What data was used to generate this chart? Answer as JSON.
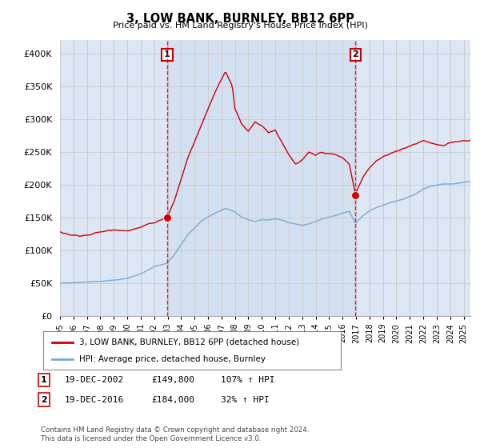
{
  "title": "3, LOW BANK, BURNLEY, BB12 6PP",
  "subtitle": "Price paid vs. HM Land Registry's House Price Index (HPI)",
  "ylim": [
    0,
    420000
  ],
  "yticks": [
    0,
    50000,
    100000,
    150000,
    200000,
    250000,
    300000,
    350000,
    400000
  ],
  "sale1_date": 2002.96,
  "sale1_price": 149800,
  "sale2_date": 2016.96,
  "sale2_price": 184000,
  "line_color_red": "#cc0000",
  "line_color_blue": "#7aaad0",
  "vline_color": "#cc0000",
  "grid_color": "#cccccc",
  "bg_color_normal": "#dce6f5",
  "bg_color_between": "#ccdcf0",
  "legend_entry1": "3, LOW BANK, BURNLEY, BB12 6PP (detached house)",
  "legend_entry2": "HPI: Average price, detached house, Burnley",
  "footnote": "Contains HM Land Registry data © Crown copyright and database right 2024.\nThis data is licensed under the Open Government Licence v3.0.",
  "xstart": 1995.0,
  "xend": 2025.5
}
